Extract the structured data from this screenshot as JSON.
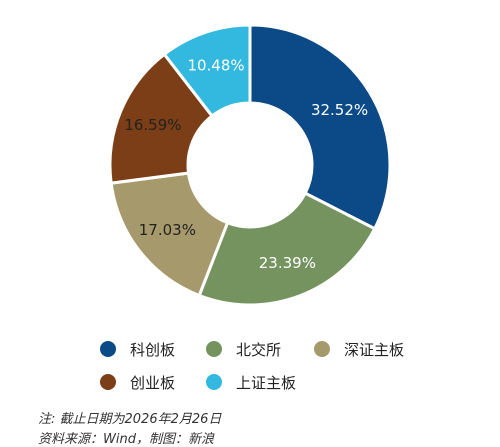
{
  "chart_data": {
    "type": "pie",
    "categories": [
      "科创板",
      "北交所",
      "深证主板",
      "创业板",
      "上证主板"
    ],
    "order_clockwise_from_top": [
      "科创板",
      "北交所",
      "深证主板",
      "创业板",
      "上证主板"
    ],
    "values": [
      32.52,
      23.39,
      17.03,
      16.59,
      10.48
    ],
    "value_labels": [
      "32.52%",
      "23.39%",
      "17.03%",
      "16.59%",
      "10.48%"
    ],
    "colors": [
      "#0b4a86",
      "#74935f",
      "#a69a6c",
      "#7c3e17",
      "#33b9e0"
    ],
    "donut": true,
    "legend": {
      "placement": "bottom",
      "rows": [
        [
          "科创板",
          "北交所",
          "深证主板"
        ],
        [
          "创业板",
          "上证主板"
        ]
      ]
    }
  },
  "footer": {
    "note": "注: 截止日期为2026年2月26日",
    "source": "资料来源：Wind，制图：新浪"
  }
}
